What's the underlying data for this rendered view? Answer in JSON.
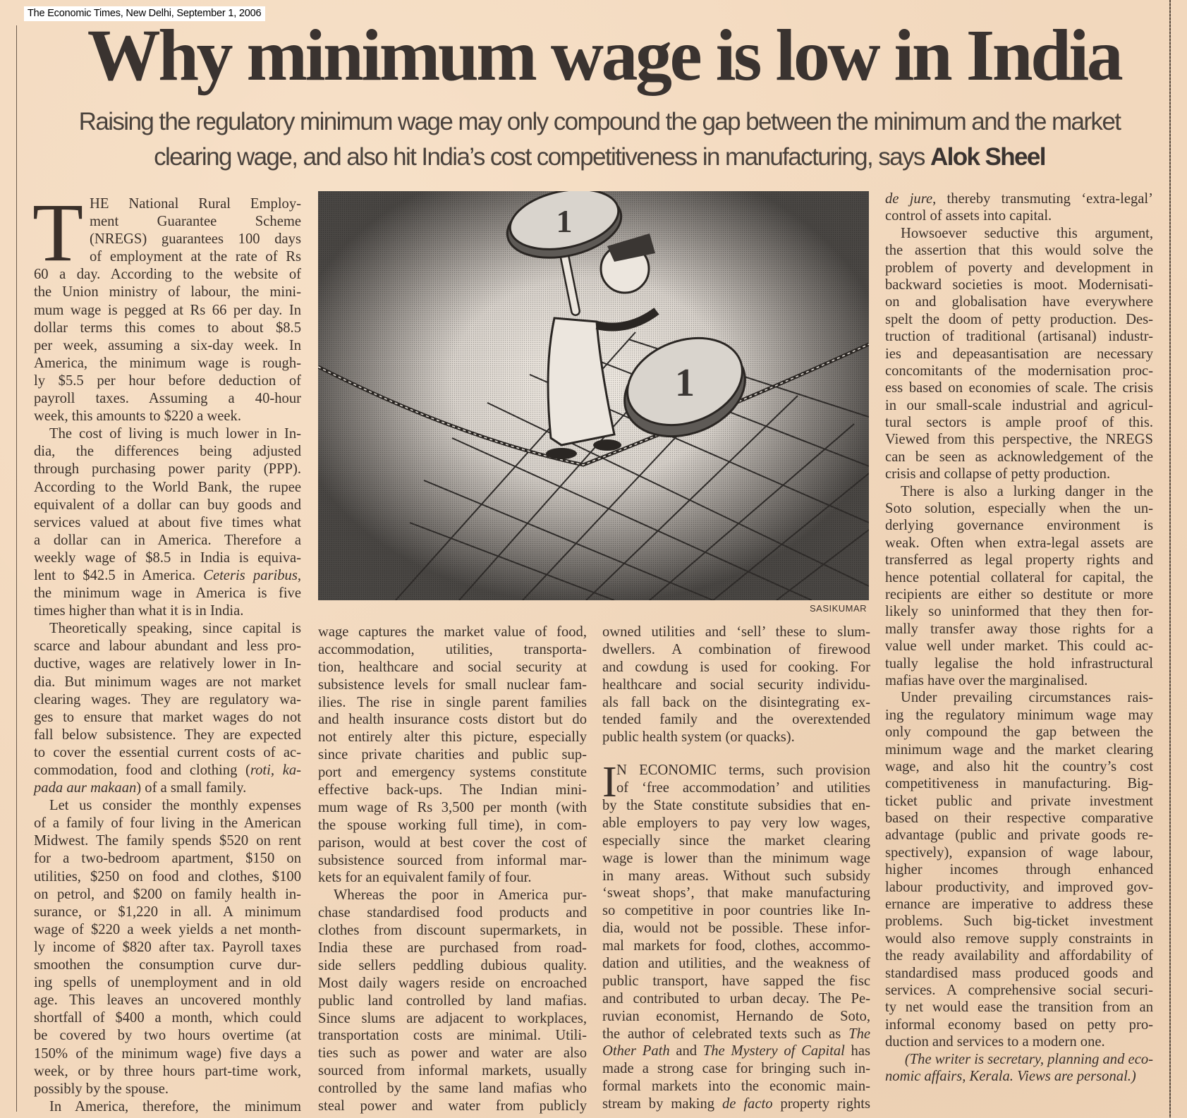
{
  "source": "The Economic Times, New Delhi, September 1, 2006",
  "headline": "Why minimum wage is low in India",
  "deck": {
    "line1": "Raising the regulatory minimum wage may only compound the gap between the minimum and the market",
    "line2": "clearing wage, and also hit India’s cost competitiveness in manufacturing, says ",
    "author": "Alok Sheel"
  },
  "illustration": {
    "credit": "SASIKUMAR",
    "coin_text": "1"
  },
  "colors": {
    "paper": "#f2d8bd",
    "ink": "#3a302a"
  },
  "columns": [
    {
      "paragraphs": [
        {
          "dropcap": "T",
          "lines": [
            "HE National Rural Employ-",
            "ment Guarantee Scheme",
            "(NREGS) guarantees 100 days",
            "of employment at the rate of Rs",
            "60 a day. According to the website of",
            "the Union ministry of labour, the mini-",
            "mum wage is pegged at Rs 66 per day. In",
            "dollar terms this comes to about $8.5",
            "per week, assuming a six-day week. In",
            "America, the minimum wage is rough-",
            "ly $5.5 per hour before deduction of",
            "payroll taxes. Assuming a 40-hour",
            "week, this amounts to $220 a week."
          ]
        },
        {
          "lines": [
            "The cost of living is much lower in In-",
            "dia, the differences being adjusted",
            "through purchasing power parity (PPP).",
            "According to the World Bank, the rupee",
            "equivalent of a dollar can buy goods and",
            "services valued at about five times what",
            "a dollar can in America. Therefore a",
            "weekly wage of $8.5 in India is equiva-",
            [
              {
                "t": "lent to $42.5 in America. "
              },
              {
                "t": "Ceteris paribus,",
                "i": true
              }
            ],
            "the minimum wage in America is five",
            "times higher than what it is in India."
          ]
        },
        {
          "lines": [
            "Theoretically speaking, since capital is",
            "scarce and labour abundant and less pro-",
            "ductive, wages are relatively lower in In-",
            "dia. But minimum wages are not market",
            "clearing wages. They are regulatory wa-",
            "ges to ensure that market wages do not",
            "fall below subsistence. They are expected",
            "to cover the essential current costs of ac-",
            [
              {
                "t": "commodation, food and clothing ("
              },
              {
                "t": "roti, ka-",
                "i": true
              }
            ],
            [
              {
                "t": "pada aur makaan",
                "i": true
              },
              {
                "t": ") of a small family."
              }
            ]
          ]
        },
        {
          "lines": [
            "Let us consider the monthly expenses",
            "of a family of four living in the American",
            "Midwest. The family spends $520 on rent",
            "for a two-bedroom apartment, $150 on",
            "utilities, $250 on food and clothes, $100",
            "on petrol, and $200 on family health in-",
            "surance, or $1,220 in all. A minimum",
            "wage of $220 a week yields a net month-",
            "ly income of $820 after tax. Payroll taxes",
            "smoothen the consumption curve dur-",
            "ing spells of unemployment and in old",
            "age. This leaves an uncovered monthly",
            "shortfall of $400 a month, which could",
            "be covered by two hours overtime (at",
            "150% of the minimum wage) five days a",
            "week, or by three hours part-time work,",
            "possibly by the spouse."
          ]
        },
        {
          "continues": true,
          "lines": [
            "In America, therefore, the minimum"
          ]
        }
      ]
    },
    {
      "paragraphs": [
        {
          "nofirst": true,
          "lines": [
            "wage captures the market value of food,",
            "accommodation, utilities, transporta-",
            "tion, healthcare and social security at",
            "subsistence levels for small nuclear fam-",
            "ilies. The rise in single parent families",
            "and health insurance costs distort but do",
            "not entirely alter this picture, especially",
            "since private charities and public sup-",
            "port and emergency systems constitute",
            "effective back-ups. The Indian mini-",
            "mum wage of Rs 3,500 per month (with",
            "the spouse working full time), in com-",
            "parison, would at best cover the cost of",
            "subsistence sourced from informal mar-",
            "kets for an equivalent family of four."
          ]
        },
        {
          "continues": true,
          "lines": [
            "Whereas the poor in America pur-",
            "chase standardised food products and",
            "clothes from discount supermarkets, in",
            "India these are purchased from road-",
            "side sellers peddling dubious quality.",
            "Most daily wagers reside on encroached",
            "public land controlled by land mafias.",
            "Since slums are adjacent to workplaces,",
            "transportation costs are minimal. Utili-",
            "ties such as power and water are also",
            "sourced from informal markets, usually",
            "controlled by the same land mafias who",
            "steal power and water from publicly"
          ]
        }
      ]
    },
    {
      "paragraphs": [
        {
          "nofirst": true,
          "lines": [
            "owned utilities and ‘sell’ these to slum-",
            "dwellers. A combination of firewood",
            "and cowdung is used for cooking. For",
            "healthcare and social security individu-",
            "als fall back on the disintegrating ex-",
            "tended family and the overextended",
            "public health system (or quacks)."
          ]
        },
        {
          "dropcap": "I",
          "gap": true,
          "continues": true,
          "lines": [
            "N ECONOMIC terms, such provision",
            "of ‘free accommodation’ and utilities",
            "by the State constitute subsidies that en-",
            "able employers to pay very low wages,",
            "especially since the market clearing",
            "wage is lower than the minimum wage",
            "in many areas. Without such subsidy",
            "‘sweat shops’, that make manufacturing",
            "so competitive in poor countries like In-",
            "dia, would not be possible. These infor-",
            "mal markets for food, clothes, accommo-",
            "dation and utilities, and the weakness of",
            "public transport, have sapped the fisc",
            "and contributed to urban decay. The Pe-",
            "ruvian economist, Hernando de Soto,",
            [
              {
                "t": "the author of celebrated texts such as "
              },
              {
                "t": "The",
                "i": true
              }
            ],
            [
              {
                "t": "Other Path",
                "i": true
              },
              {
                "t": " and "
              },
              {
                "t": "The Mystery of Capital",
                "i": true
              },
              {
                "t": " has"
              }
            ],
            "made a strong case for bringing such in-",
            "formal markets into the economic main-",
            [
              {
                "t": "stream by making "
              },
              {
                "t": "de facto",
                "i": true
              },
              {
                "t": " property rights"
              }
            ]
          ]
        }
      ]
    },
    {
      "paragraphs": [
        {
          "nofirst": true,
          "lines": [
            [
              {
                "t": "de jure",
                "i": true
              },
              {
                "t": ", thereby transmuting ‘extra-legal’"
              }
            ],
            "control of assets into capital."
          ]
        },
        {
          "lines": [
            "Howsoever seductive this argument,",
            "the assertion that this would solve the",
            "problem of poverty and development in",
            "backward societies is moot. Modernisati-",
            "on and globalisation have everywhere",
            "spelt the doom of petty production. Des-",
            "truction of traditional (artisanal) industr-",
            "ies and depeasantisation are necessary",
            "concomitants of the modernisation proc-",
            "ess based on economies of scale. The crisis",
            "in our small-scale industrial and agricul-",
            "tural sectors is ample proof of this.",
            "Viewed from this perspective, the NREGS",
            "can be seen as acknowledgement of the",
            "crisis and collapse of petty production."
          ]
        },
        {
          "lines": [
            "There is also a lurking danger in the",
            "Soto solution, especially when the un-",
            "derlying governance environment is",
            "weak. Often when extra-legal assets are",
            "transferred as legal property rights and",
            "hence potential collateral for capital, the",
            "recipients are either so destitute or more",
            "likely so uninformed that they then for-",
            "mally transfer away those rights for a",
            "value well under market. This could ac-",
            "tually legalise the hold infrastructural",
            "mafias have over the marginalised."
          ]
        },
        {
          "lines": [
            "Under prevailing circumstances rais-",
            "ing the regulatory minimum wage may",
            "only compound the gap between the",
            "minimum wage and the market clearing",
            "wage, and also hit the country’s cost",
            "competitiveness in manufacturing. Big-",
            "ticket public and private investment",
            "based on their respective comparative",
            "advantage (public and private goods re-",
            "spectively), expansion of wage labour,",
            "higher incomes through enhanced",
            "labour productivity, and improved gov-",
            "ernance are imperative to address these",
            "problems. Such big-ticket investment",
            "would also remove supply constraints in",
            "the ready availability and affordability of",
            "standardised mass produced goods and",
            "services. A comprehensive social securi-",
            "ty net would ease the transition from an",
            "informal economy based on petty pro-",
            "duction and services to a modern one."
          ]
        },
        {
          "note": true,
          "lines": [
            "(The writer is secretary, planning and eco-",
            "nomic affairs, Kerala. Views are personal.)"
          ]
        }
      ]
    }
  ]
}
